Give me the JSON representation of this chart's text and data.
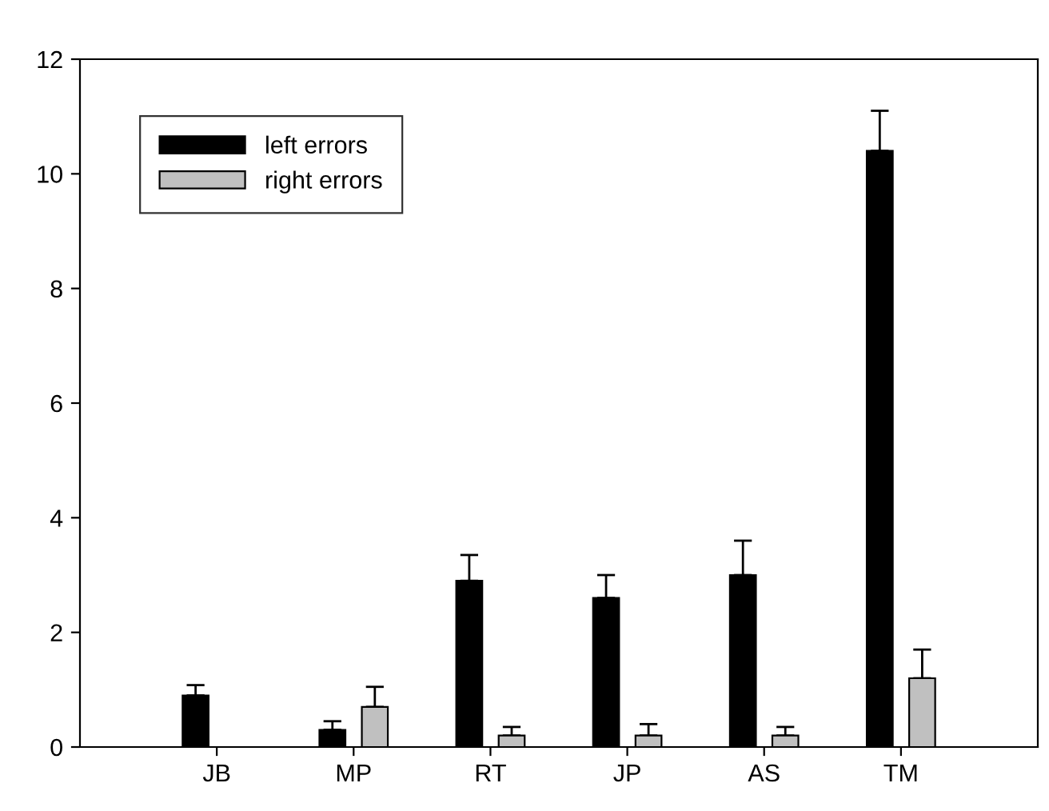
{
  "chart_data": {
    "type": "bar",
    "categories": [
      "JB",
      "MP",
      "RT",
      "JP",
      "AS",
      "TM"
    ],
    "series": [
      {
        "name": "left errors",
        "color": "#000000",
        "values": [
          0.9,
          0.3,
          2.9,
          2.6,
          3.0,
          10.4
        ],
        "errors": [
          0.18,
          0.15,
          0.45,
          0.4,
          0.6,
          0.7
        ]
      },
      {
        "name": "right errors",
        "color": "#c0c0c0",
        "values": [
          null,
          0.7,
          0.2,
          0.2,
          0.2,
          1.2
        ],
        "errors": [
          null,
          0.35,
          0.15,
          0.2,
          0.15,
          0.5
        ]
      }
    ],
    "ylim": [
      0,
      12
    ],
    "yticks": [
      0,
      2,
      4,
      6,
      8,
      10,
      12
    ],
    "legend": "top left",
    "grid": false
  }
}
